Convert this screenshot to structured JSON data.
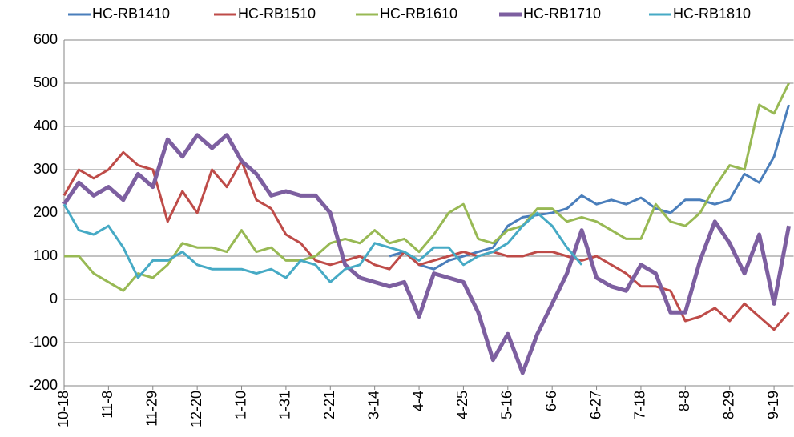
{
  "chart_data": {
    "type": "line",
    "categories": [
      "10-18",
      null,
      null,
      "11-8",
      null,
      null,
      "11-29",
      null,
      null,
      "12-20",
      null,
      null,
      "1-10",
      null,
      null,
      "1-31",
      null,
      null,
      "2-21",
      null,
      null,
      "3-14",
      null,
      null,
      "4-4",
      null,
      null,
      "4-25",
      null,
      null,
      "5-16",
      null,
      null,
      "6-6",
      null,
      null,
      "6-27",
      null,
      null,
      "7-18",
      null,
      null,
      "8-8",
      null,
      null,
      "8-29",
      null,
      null,
      "9-19",
      null
    ],
    "ylim": [
      -200,
      600
    ],
    "yticks": [
      -200,
      -100,
      0,
      100,
      200,
      300,
      400,
      500,
      600
    ],
    "grid": true,
    "legend": "top",
    "series": [
      {
        "name": "HC-RB1410",
        "color": "#4a7ebb",
        "width": 3,
        "values": [
          null,
          null,
          null,
          null,
          null,
          null,
          null,
          null,
          null,
          null,
          null,
          null,
          null,
          null,
          null,
          null,
          null,
          null,
          null,
          null,
          null,
          null,
          100,
          110,
          80,
          70,
          90,
          100,
          110,
          120,
          170,
          190,
          195,
          200,
          210,
          240,
          220,
          230,
          220,
          235,
          210,
          200,
          230,
          230,
          220,
          230,
          290,
          270,
          330,
          450
        ]
      },
      {
        "name": "HC-RB1510",
        "color": "#be4b48",
        "width": 3,
        "values": [
          240,
          300,
          280,
          300,
          340,
          310,
          300,
          180,
          250,
          200,
          300,
          260,
          320,
          230,
          210,
          150,
          130,
          90,
          80,
          90,
          100,
          80,
          70,
          110,
          80,
          90,
          100,
          110,
          100,
          110,
          100,
          100,
          110,
          110,
          100,
          90,
          100,
          80,
          60,
          30,
          30,
          20,
          -50,
          -40,
          -20,
          -50,
          -10,
          -40,
          -70,
          -30
        ]
      },
      {
        "name": "HC-RB1610",
        "color": "#98b954",
        "width": 3,
        "values": [
          100,
          100,
          60,
          40,
          20,
          60,
          50,
          80,
          130,
          120,
          120,
          110,
          160,
          110,
          120,
          90,
          90,
          100,
          130,
          140,
          130,
          160,
          130,
          140,
          110,
          150,
          200,
          220,
          140,
          130,
          160,
          170,
          210,
          210,
          180,
          190,
          180,
          160,
          140,
          140,
          220,
          180,
          170,
          200,
          260,
          310,
          300,
          450,
          430,
          500
        ]
      },
      {
        "name": "HC-RB1710",
        "color": "#7d5fa0",
        "width": 5,
        "values": [
          220,
          270,
          240,
          260,
          230,
          290,
          260,
          370,
          330,
          380,
          350,
          380,
          320,
          290,
          240,
          250,
          240,
          240,
          200,
          80,
          50,
          40,
          30,
          40,
          -40,
          60,
          50,
          40,
          -30,
          -140,
          -80,
          -170,
          -80,
          -10,
          60,
          160,
          50,
          30,
          20,
          80,
          60,
          -30,
          -30,
          90,
          180,
          130,
          60,
          150,
          -10,
          170
        ]
      },
      {
        "name": "HC-RB1810",
        "color": "#46aac5",
        "width": 3,
        "values": [
          220,
          160,
          150,
          170,
          120,
          50,
          90,
          90,
          110,
          80,
          70,
          70,
          70,
          60,
          70,
          50,
          90,
          80,
          40,
          70,
          80,
          130,
          120,
          110,
          90,
          120,
          120,
          80,
          100,
          110,
          130,
          170,
          200,
          170,
          120,
          80,
          null,
          null,
          null,
          null,
          null,
          null,
          null,
          null,
          null,
          null,
          null,
          null,
          null,
          null
        ]
      }
    ]
  }
}
